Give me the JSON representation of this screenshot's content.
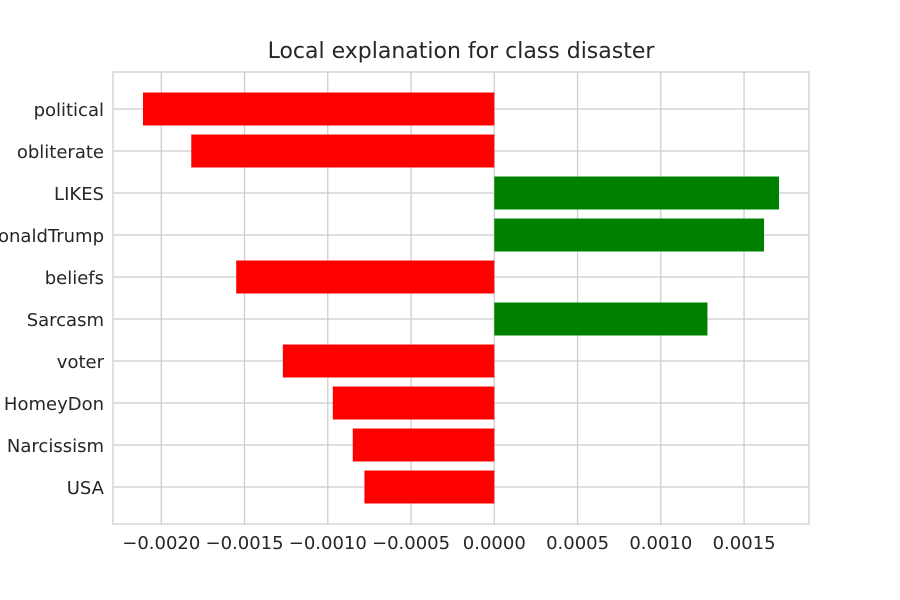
{
  "chart_data": {
    "type": "bar",
    "orientation": "horizontal",
    "title": "Local explanation for class disaster",
    "xlabel": "",
    "ylabel": "",
    "categories": [
      "political",
      "obliterate",
      "LIKES",
      "@realDonaldTrump",
      "beliefs",
      "Sarcasm",
      "voter",
      "HomeyDon",
      "Narcissism",
      "USA"
    ],
    "values": [
      -0.00211,
      -0.00182,
      0.00171,
      0.00162,
      -0.00155,
      0.00128,
      -0.00127,
      -0.00097,
      -0.00085,
      -0.00078
    ],
    "xlim": [
      -0.00229,
      0.00189
    ],
    "xticks": [
      -0.002,
      -0.0015,
      -0.001,
      -0.0005,
      0.0,
      0.0005,
      0.001,
      0.0015
    ],
    "xtick_labels": [
      "−0.0020",
      "−0.0015",
      "−0.0010",
      "−0.0005",
      "0.0000",
      "0.0005",
      "0.0010",
      "0.0015"
    ],
    "grid": true,
    "legend": false,
    "colors": {
      "positive": "#008000",
      "negative": "#ff0000"
    }
  }
}
